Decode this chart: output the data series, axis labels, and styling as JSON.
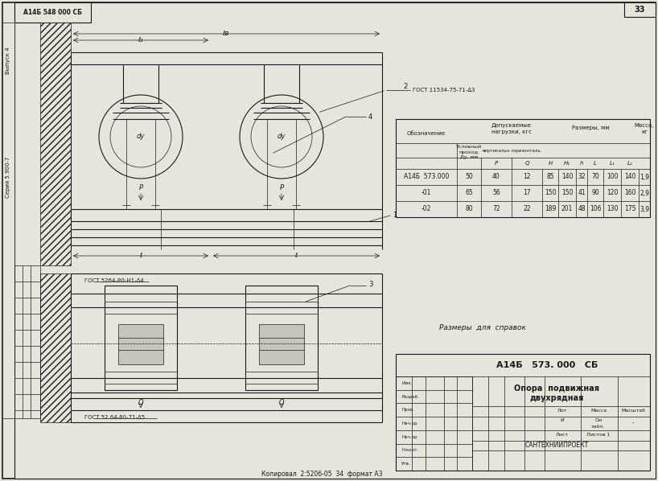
{
  "bg_color": "#e8e4dc",
  "line_color": "#1a1a1a",
  "page_num": "33",
  "series_label": "Серия 5.900-7",
  "issue_label": "Выпуск 4",
  "top_left_text": "А14Б 548 000 СБ",
  "table_data": [
    [
      "А14Б  573.000",
      "50",
      "40",
      "12",
      "85",
      "140",
      "32",
      "70",
      "100",
      "140",
      "1,9"
    ],
    [
      "-01",
      "65",
      "56",
      "17",
      "150",
      "150",
      "41",
      "90",
      "120",
      "160",
      "2,9"
    ],
    [
      "-02",
      "80",
      "72",
      "22",
      "189",
      "201",
      "48",
      "106",
      "130",
      "175",
      "3,9"
    ]
  ],
  "note_text": "Размеры  для  справок",
  "title_main": "А14Б   573. 000   СБ",
  "name_line1": "Опора  подвижная",
  "name_line2": "двухрядная",
  "bottom_org": "САНТЕХНИИПРОЕКТ",
  "bottom_copy": "Копировал  2:5206-05  34  формат А3",
  "gost_1": "ГОСТ 11534-75-71-∆3",
  "gost_2": "ГОСТ 5264-80-Н1-∆4",
  "gost_3": "ГОСТ 52.64-80-71-∆5",
  "dim_L1": "ℓ₁",
  "dim_LR": "ℓв",
  "dim_L": "ℓ",
  "dim_P": "P",
  "dim_Q": "Q",
  "dim_DY": "dу"
}
